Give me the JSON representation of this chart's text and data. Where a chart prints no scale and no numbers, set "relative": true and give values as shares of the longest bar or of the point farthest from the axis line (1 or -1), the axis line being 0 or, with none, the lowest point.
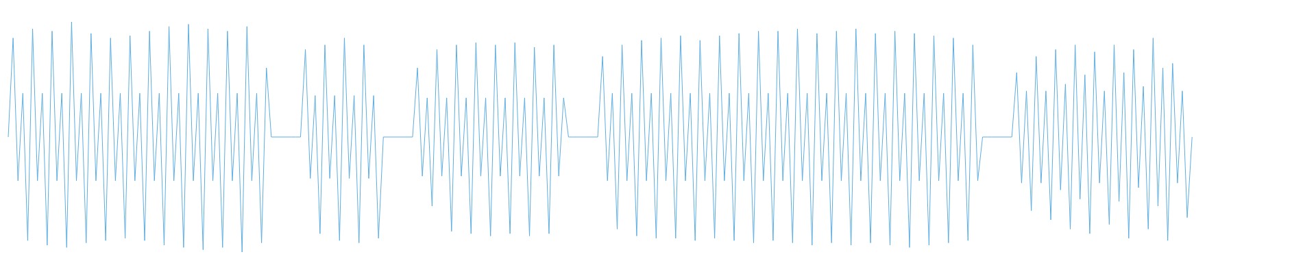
{
  "chart_data": {
    "type": "line",
    "relative": true,
    "categories": [
      null,
      null,
      null,
      null,
      null,
      null,
      null,
      null,
      null,
      null,
      null,
      null,
      null,
      null,
      null,
      null,
      null,
      null,
      null,
      null,
      null,
      null,
      null,
      null,
      null,
      null,
      null,
      null,
      null,
      null,
      null,
      null,
      null,
      null,
      null,
      null,
      null,
      null,
      null,
      null,
      null,
      null,
      null,
      null,
      null,
      null,
      null,
      null,
      null,
      null,
      null,
      null,
      null,
      null,
      null,
      null,
      null,
      null,
      null,
      null,
      null,
      null,
      null,
      null,
      null,
      null,
      null,
      null,
      null,
      null,
      null,
      null,
      null,
      null,
      null,
      null,
      null,
      null,
      null,
      null,
      null,
      null,
      null,
      null,
      null,
      null,
      null,
      null,
      null,
      null,
      null,
      null,
      null,
      null,
      null,
      null,
      null,
      null,
      null,
      null,
      null,
      null,
      null,
      null,
      null,
      null,
      null,
      null,
      null,
      null,
      null,
      null,
      null,
      null,
      null,
      null,
      null,
      null,
      null,
      null,
      null,
      null,
      null,
      null,
      null,
      null,
      null,
      null,
      null,
      null,
      null,
      null,
      null,
      null,
      null,
      null,
      null,
      null,
      null,
      null,
      null,
      null,
      null,
      null,
      null,
      null,
      null,
      null,
      null,
      null,
      null,
      null,
      null,
      null,
      null,
      null,
      null,
      null,
      null,
      null,
      null,
      null,
      null,
      null,
      null,
      null,
      null,
      null,
      null,
      null,
      null,
      null,
      null,
      null,
      null,
      null,
      null,
      null,
      null,
      null,
      null,
      null,
      null,
      null,
      null,
      null,
      null,
      null,
      null,
      null,
      null,
      null,
      null,
      null,
      null,
      null,
      null,
      null,
      null,
      null,
      null,
      null,
      null,
      null,
      null,
      null,
      null,
      null,
      null,
      null,
      null,
      null,
      null,
      null,
      null,
      null,
      null,
      null,
      null,
      null,
      null,
      null,
      null,
      null,
      null,
      null,
      null,
      null,
      null,
      null,
      null,
      null,
      null,
      null,
      null,
      null,
      null,
      null,
      null,
      null,
      null,
      null,
      null,
      null,
      null,
      null,
      null,
      null,
      null,
      null,
      null,
      null,
      null,
      null,
      null,
      null,
      null,
      null,
      null,
      null,
      null,
      null,
      null,
      null,
      null,
      null,
      null,
      null,
      null,
      null
    ],
    "series": [
      {
        "color": "#5dade2",
        "values": [
          0.5,
          0.93,
          0.31,
          0.69,
          0.05,
          0.97,
          0.31,
          0.69,
          0.03,
          0.96,
          0.31,
          0.69,
          0.02,
          1,
          0.31,
          0.69,
          0.04,
          0.95,
          0.31,
          0.69,
          0.05,
          0.93,
          0.31,
          0.69,
          0.06,
          0.94,
          0.31,
          0.69,
          0.05,
          0.96,
          0.31,
          0.69,
          0.03,
          0.98,
          0.31,
          0.69,
          0.02,
          0.99,
          0.31,
          0.69,
          0.01,
          0.97,
          0.31,
          0.69,
          0.02,
          0.96,
          0.31,
          0.69,
          0,
          0.98,
          0.31,
          0.69,
          0.04,
          0.8,
          0.5,
          0.5,
          0.5,
          0.5,
          0.5,
          0.5,
          0.5,
          0.88,
          0.32,
          0.68,
          0.08,
          0.9,
          0.32,
          0.68,
          0.05,
          0.93,
          0.32,
          0.68,
          0.04,
          0.9,
          0.32,
          0.68,
          0.06,
          0.5,
          0.5,
          0.5,
          0.5,
          0.5,
          0.5,
          0.5,
          0.8,
          0.33,
          0.67,
          0.2,
          0.88,
          0.33,
          0.67,
          0.09,
          0.9,
          0.33,
          0.67,
          0.08,
          0.91,
          0.33,
          0.67,
          0.07,
          0.9,
          0.33,
          0.67,
          0.08,
          0.91,
          0.33,
          0.67,
          0.07,
          0.89,
          0.33,
          0.67,
          0.08,
          0.9,
          0.33,
          0.67,
          0.5,
          0.5,
          0.5,
          0.5,
          0.5,
          0.5,
          0.5,
          0.85,
          0.31,
          0.69,
          0.1,
          0.9,
          0.31,
          0.69,
          0.07,
          0.92,
          0.31,
          0.69,
          0.06,
          0.93,
          0.31,
          0.69,
          0.06,
          0.94,
          0.31,
          0.69,
          0.05,
          0.92,
          0.31,
          0.69,
          0.06,
          0.94,
          0.31,
          0.69,
          0.05,
          0.95,
          0.31,
          0.69,
          0.04,
          0.96,
          0.31,
          0.69,
          0.05,
          0.96,
          0.31,
          0.69,
          0.04,
          0.97,
          0.31,
          0.69,
          0.03,
          0.95,
          0.31,
          0.69,
          0.04,
          0.96,
          0.31,
          0.69,
          0.03,
          0.97,
          0.31,
          0.69,
          0.04,
          0.95,
          0.31,
          0.69,
          0.03,
          0.96,
          0.31,
          0.69,
          0.02,
          0.95,
          0.31,
          0.69,
          0.03,
          0.94,
          0.31,
          0.69,
          0.04,
          0.93,
          0.31,
          0.69,
          0.05,
          0.9,
          0.31,
          0.5,
          0.5,
          0.5,
          0.5,
          0.5,
          0.5,
          0.5,
          0.78,
          0.3,
          0.7,
          0.18,
          0.85,
          0.3,
          0.7,
          0.14,
          0.88,
          0.27,
          0.73,
          0.1,
          0.9,
          0.23,
          0.77,
          0.08,
          0.87,
          0.3,
          0.7,
          0.12,
          0.9,
          0.22,
          0.78,
          0.06,
          0.88,
          0.28,
          0.72,
          0.1,
          0.93,
          0.2,
          0.8,
          0.05,
          0.82,
          0.3,
          0.7,
          0.15,
          0.5,
          null,
          null,
          null,
          null,
          null,
          null,
          null,
          null,
          null,
          null,
          null,
          null,
          null,
          null,
          null,
          null,
          null,
          null,
          null,
          null,
          null,
          null,
          null,
          null,
          null,
          null
        ]
      }
    ]
  }
}
